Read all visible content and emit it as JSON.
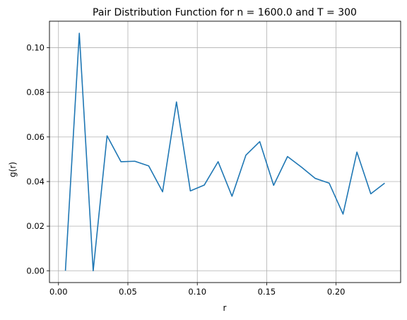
{
  "chart_data": {
    "type": "line",
    "title": "Pair Distribution Function for n = 1600.0 and T = 300",
    "xlabel": "r",
    "ylabel": "g(r)",
    "xlim": [
      -0.0065,
      0.2465
    ],
    "ylim": [
      -0.0053,
      0.1119
    ],
    "xticks": [
      0.0,
      0.05,
      0.1,
      0.15,
      0.2
    ],
    "xtick_labels": [
      "0.00",
      "0.05",
      "0.10",
      "0.15",
      "0.20"
    ],
    "yticks": [
      0.0,
      0.02,
      0.04,
      0.06,
      0.08,
      0.1
    ],
    "ytick_labels": [
      "0.00",
      "0.02",
      "0.04",
      "0.06",
      "0.08",
      "0.10"
    ],
    "grid": true,
    "series": [
      {
        "color": "#1f77b4",
        "x": [
          0.005,
          0.015,
          0.025,
          0.035,
          0.045,
          0.055,
          0.065,
          0.075,
          0.085,
          0.095,
          0.105,
          0.115,
          0.125,
          0.135,
          0.145,
          0.155,
          0.165,
          0.175,
          0.185,
          0.195,
          0.205,
          0.215,
          0.225,
          0.235
        ],
        "y": [
          0.0,
          0.1065,
          0.0,
          0.0605,
          0.0489,
          0.0491,
          0.047,
          0.0354,
          0.0757,
          0.0358,
          0.0384,
          0.0489,
          0.0334,
          0.0518,
          0.0579,
          0.0383,
          0.0512,
          0.0465,
          0.0414,
          0.0393,
          0.0254,
          0.0532,
          0.0345,
          0.0393
        ]
      }
    ]
  }
}
